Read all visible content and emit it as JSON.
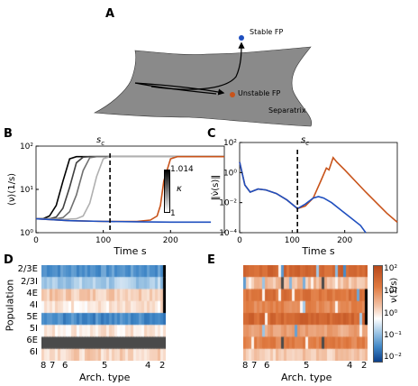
{
  "panels": {
    "A": {
      "letter": "A",
      "labels": {
        "stable": "Stable FP",
        "unstable": "Unstable FP",
        "separatrix": "Separatrix"
      },
      "colors": {
        "stable": "#1f4fbf",
        "unstable": "#c8531a",
        "surface": "#8a8a8a"
      }
    },
    "B": {
      "letter": "B",
      "sc_label": "s",
      "sc_sub": "c",
      "colorbar": {
        "max_label": "1.014",
        "min_label": "1",
        "var": "κ"
      }
    },
    "C": {
      "letter": "C",
      "sc_label": "s",
      "sc_sub": "c"
    },
    "D": {
      "letter": "D",
      "ylabel": "Population",
      "xlabel": "Arch. type",
      "rows": [
        "2/3E",
        "2/3I",
        "4E",
        "4I",
        "5E",
        "5I",
        "6E",
        "6I"
      ],
      "xticks": [
        "8",
        "7",
        "6",
        "5",
        "4",
        "2"
      ]
    },
    "E": {
      "letter": "E",
      "xlabel": "Arch. type",
      "xticks": [
        "8",
        "7",
        "6",
        "5",
        "4",
        "2"
      ],
      "colorbar": {
        "ticks": [
          "10²",
          "10¹",
          "10⁰",
          "10⁻¹",
          "10⁻²"
        ],
        "label": "ν(1/s)"
      }
    }
  },
  "chart_data": [
    {
      "type": "line",
      "panel": "B",
      "title": "",
      "xlabel": "Time s",
      "ylabel": "⟨ν⟩(1/s)",
      "yscale": "log",
      "xlim": [
        0,
        280
      ],
      "ylim": [
        1,
        300
      ],
      "xticks": [
        0,
        100,
        200
      ],
      "yticks": [
        "10⁰",
        "10¹",
        "10²"
      ],
      "vline": {
        "x": 110,
        "label": "s_c"
      },
      "series": [
        {
          "color": "#000000",
          "x": [
            0,
            10,
            20,
            30,
            40,
            50,
            60,
            70,
            80,
            100,
            150,
            200,
            280
          ],
          "y": [
            2.5,
            2.5,
            3,
            6,
            30,
            130,
            150,
            150,
            150,
            150,
            150,
            150,
            150
          ]
        },
        {
          "color": "#404040",
          "x": [
            0,
            20,
            30,
            40,
            50,
            60,
            70,
            80,
            100,
            150,
            200,
            280
          ],
          "y": [
            2.5,
            2.5,
            2.8,
            5,
            20,
            100,
            145,
            150,
            150,
            150,
            150,
            150
          ]
        },
        {
          "color": "#707070",
          "x": [
            0,
            30,
            40,
            50,
            60,
            70,
            80,
            90,
            100,
            150,
            200,
            280
          ],
          "y": [
            2.5,
            2.5,
            2.7,
            4,
            12,
            60,
            140,
            150,
            150,
            150,
            150,
            150
          ]
        },
        {
          "color": "#b0b0b0",
          "x": [
            0,
            40,
            60,
            70,
            80,
            90,
            100,
            110,
            150,
            200,
            280
          ],
          "y": [
            2.5,
            2.4,
            2.5,
            3,
            7,
            40,
            130,
            150,
            150,
            150,
            150
          ]
        },
        {
          "color": "#c8531a",
          "x": [
            0,
            50,
            100,
            150,
            170,
            180,
            185,
            190,
            200,
            210,
            280
          ],
          "y": [
            2.5,
            2.2,
            2.1,
            2.1,
            2.3,
            3,
            6,
            30,
            130,
            150,
            150
          ]
        },
        {
          "color": "#1f4fbf",
          "x": [
            0,
            50,
            100,
            150,
            200,
            260
          ],
          "y": [
            2.5,
            2.2,
            2.1,
            2.05,
            2.0,
            2.0
          ]
        }
      ]
    },
    {
      "type": "line",
      "panel": "C",
      "title": "",
      "xlabel": "Time s",
      "ylabel": "‖ν̇(s)‖",
      "yscale": "log",
      "xlim": [
        0,
        300
      ],
      "ylim": [
        0.0001,
        100
      ],
      "xticks": [
        0,
        100,
        200
      ],
      "yticks": [
        "10⁻⁴",
        "10⁻²",
        "10⁰",
        "10²"
      ],
      "vline": {
        "x": 110,
        "label": "s_c"
      },
      "series": [
        {
          "color": "#c8531a",
          "x": [
            0,
            10,
            20,
            35,
            50,
            70,
            90,
            110,
            125,
            140,
            155,
            165,
            170,
            178,
            185,
            200,
            240,
            280,
            300
          ],
          "y": [
            5,
            0.15,
            0.05,
            0.08,
            0.07,
            0.04,
            0.015,
            0.004,
            0.006,
            0.02,
            0.3,
            2,
            1.5,
            10,
            5,
            1.5,
            0.05,
            0.002,
            0.0005
          ]
        },
        {
          "color": "#1f4fbf",
          "x": [
            0,
            10,
            20,
            35,
            50,
            70,
            90,
            110,
            125,
            140,
            150,
            160,
            175,
            200,
            230,
            240
          ],
          "y": [
            5,
            0.15,
            0.05,
            0.08,
            0.07,
            0.04,
            0.015,
            0.004,
            0.008,
            0.02,
            0.025,
            0.02,
            0.01,
            0.002,
            0.0003,
            0.0001
          ]
        }
      ]
    },
    {
      "type": "heatmap",
      "panel": "D",
      "xlabel": "Arch. type",
      "ylabel": "Population",
      "rows": [
        "2/3E",
        "2/3I",
        "4E",
        "4I",
        "5E",
        "5I",
        "6E",
        "6I"
      ],
      "row_base_log10": [
        -1.2,
        -0.6,
        0.4,
        0.1,
        -1.3,
        0.1,
        3,
        0.3
      ],
      "note": "6E row saturated dark gray; last column black for rows 2/3E-4I"
    },
    {
      "type": "heatmap",
      "panel": "E",
      "xlabel": "Arch. type",
      "rows": 8,
      "row_base_log10": [
        1.6,
        0.5,
        1.4,
        1.1,
        1.6,
        0.8,
        1.2,
        0.4
      ],
      "colorbar_range_log10": [
        -2,
        2.2
      ]
    }
  ]
}
